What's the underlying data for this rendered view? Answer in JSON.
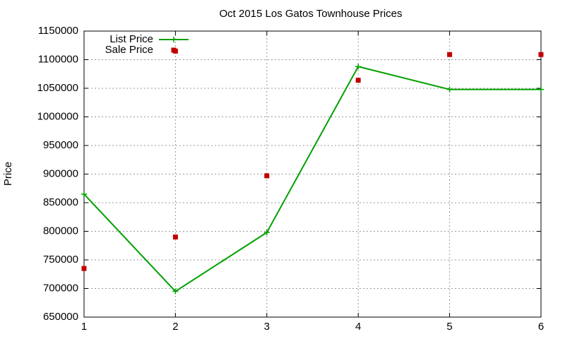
{
  "chart_data": {
    "type": "line",
    "title": "Oct 2015 Los Gatos Townhouse Prices",
    "y_label": "Price",
    "series": [
      {
        "name": "List Price",
        "color": "#00a000",
        "mode": "lines+markers",
        "x": [
          1,
          2,
          3,
          4,
          5,
          6
        ],
        "values": [
          865000,
          695000,
          798000,
          1088000,
          1048000,
          1048000
        ]
      },
      {
        "name": "Sale Price",
        "color": "#c00000",
        "mode": "markers",
        "x": [
          1,
          2,
          2,
          3,
          4,
          5,
          6
        ],
        "values": [
          735000,
          1115000,
          790000,
          897000,
          1064000,
          1109000,
          1109000
        ]
      }
    ],
    "xlim": [
      1,
      6
    ],
    "xticks": [
      1,
      2,
      3,
      4,
      5,
      6
    ],
    "ylim": [
      650000,
      1150000
    ],
    "yticks": [
      650000,
      700000,
      750000,
      800000,
      850000,
      900000,
      950000,
      1000000,
      1050000,
      1100000,
      1150000
    ],
    "grid": true,
    "legend": "top-left"
  }
}
